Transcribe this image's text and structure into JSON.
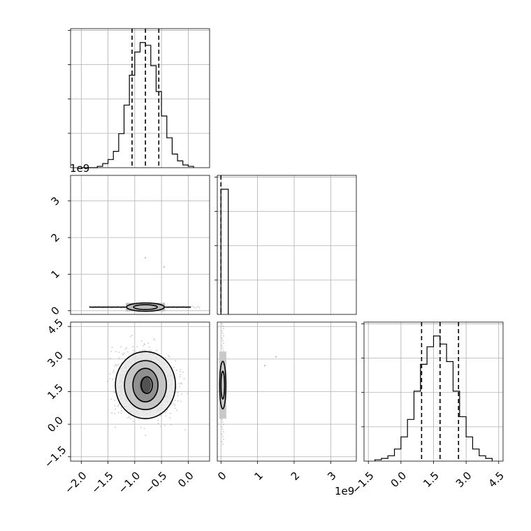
{
  "chart_data": {
    "type": "corner",
    "parameters": [
      {
        "quantiles": [
          -1.05,
          -0.8,
          -0.55
        ],
        "xlim": [
          -2.2,
          0.4
        ],
        "scale_label": "",
        "hist_peak": 1.0
      },
      {
        "quantiles": [
          0.0
        ],
        "xlim": [
          -0.1,
          3.7
        ],
        "scale_label": "1e9",
        "hist_peak": 1.0
      },
      {
        "quantiles": [
          0.95,
          1.8,
          2.65
        ],
        "xlim": [
          -1.7,
          4.7
        ],
        "scale_label": "",
        "hist_peak": 1.0
      }
    ],
    "hist_param0": {
      "bin_edges": [
        -2.0,
        -1.9,
        -1.8,
        -1.7,
        -1.6,
        -1.5,
        -1.4,
        -1.3,
        -1.2,
        -1.1,
        -1.0,
        -0.9,
        -0.8,
        -0.7,
        -0.6,
        -0.5,
        -0.4,
        -0.3,
        -0.2,
        -0.1,
        0.0,
        0.1
      ],
      "counts": [
        0.0,
        0.0,
        0.0,
        0.01,
        0.03,
        0.06,
        0.12,
        0.25,
        0.46,
        0.68,
        0.85,
        0.92,
        0.9,
        0.75,
        0.56,
        0.38,
        0.22,
        0.1,
        0.05,
        0.02,
        0.01
      ]
    },
    "hist_param1": {
      "bin_edges": [
        0.0,
        0.2
      ],
      "counts": [
        1.0
      ]
    },
    "hist_param2": {
      "bin_edges": [
        -1.2,
        -0.9,
        -0.6,
        -0.3,
        0.0,
        0.3,
        0.6,
        0.9,
        1.2,
        1.5,
        1.8,
        2.1,
        2.4,
        2.7,
        3.0,
        3.3,
        3.6,
        3.9,
        4.2
      ],
      "counts": [
        0.01,
        0.02,
        0.04,
        0.09,
        0.18,
        0.31,
        0.52,
        0.72,
        0.85,
        0.93,
        0.87,
        0.74,
        0.52,
        0.33,
        0.18,
        0.09,
        0.04,
        0.02
      ]
    },
    "panel_1_0": {
      "x_center": -0.8,
      "y_center": 0.1,
      "x_halfwidth": 0.55,
      "y_halfwidth": 0.05
    },
    "panel_2_0": {
      "x_center": -0.8,
      "y_center": 1.8,
      "levels": [
        0.1,
        0.55,
        1.15,
        2.0
      ]
    },
    "panel_2_1": {
      "x_center": 0.05,
      "y_center": 1.8,
      "y_halfwidth": 1.3
    },
    "axes": {
      "param0_ticks": [
        "−2.0",
        "−1.5",
        "−1.0",
        "−0.5",
        "0.0"
      ],
      "param0_tick_values": [
        -2.0,
        -1.5,
        -1.0,
        -0.5,
        0.0
      ],
      "param1_ticks": [
        "0",
        "1",
        "2",
        "3"
      ],
      "param1_tick_values": [
        0,
        1,
        2,
        3
      ],
      "param2_ticks": [
        "−1.5",
        "0.0",
        "1.5",
        "3.0",
        "4.5"
      ],
      "param2_tick_values": [
        -1.5,
        0.0,
        1.5,
        3.0,
        4.5
      ]
    },
    "grid": true,
    "xlabel": "",
    "ylabel": ""
  }
}
